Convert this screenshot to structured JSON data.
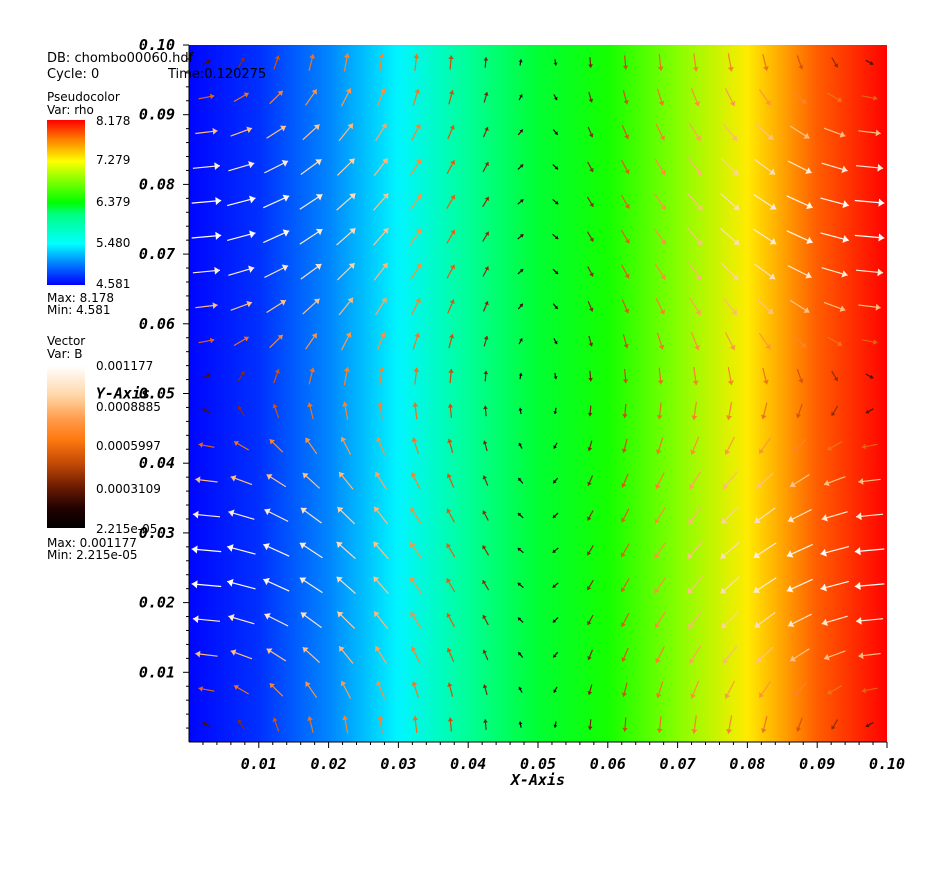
{
  "header": {
    "db_line": "DB: chombo00060.hdf",
    "cycle_label": "Cycle: 0",
    "time_label": "Time:0.120275"
  },
  "legend_scalar": {
    "title": "Pseudocolor",
    "var": "Var: rho",
    "ticks": [
      "8.178",
      "7.279",
      "6.379",
      "5.480",
      "4.581"
    ],
    "max_label": "Max:  8.178",
    "min_label": "Min:  4.581"
  },
  "legend_vector": {
    "title": "Vector",
    "var": "Var: B",
    "ticks": [
      "0.001177",
      "0.0008885",
      "0.0005997",
      "0.0003109",
      "2.215e-05"
    ],
    "max_label": "Max:  0.001177",
    "min_label": "Min:  2.215e-05"
  },
  "chart_data": {
    "type": "heatmap",
    "title": "",
    "xlabel": "X-Axis",
    "ylabel": "Y-Axis",
    "xlim": [
      0,
      0.1
    ],
    "ylim": [
      0,
      0.1
    ],
    "x_ticks": [
      "0.01",
      "0.02",
      "0.03",
      "0.04",
      "0.05",
      "0.06",
      "0.07",
      "0.08",
      "0.09",
      "0.10"
    ],
    "y_ticks": [
      "0.10",
      "0.09",
      "0.08",
      "0.07",
      "0.06",
      "0.05",
      "0.04",
      "0.03",
      "0.02",
      "0.01"
    ],
    "scalar_field": {
      "name": "rho",
      "min": 4.581,
      "max": 8.178,
      "profile_x": [
        0,
        0.01,
        0.02,
        0.03,
        0.04,
        0.05,
        0.06,
        0.07,
        0.08,
        0.09,
        0.1
      ],
      "profile_rho": [
        4.6,
        4.75,
        5.05,
        5.45,
        5.85,
        6.2,
        6.45,
        6.85,
        7.35,
        7.85,
        8.17
      ]
    },
    "vector_field": {
      "name": "B",
      "min": 2.215e-05,
      "max": 0.001177
    },
    "colormap_rho": [
      "#0000ff",
      "#0080ff",
      "#00ffff",
      "#00ff80",
      "#00ff00",
      "#80ff00",
      "#ffff00",
      "#ff8000",
      "#ff0000"
    ],
    "colormap_vec": [
      "#000000",
      "#3a0800",
      "#8a2a04",
      "#e05808",
      "#ff8a30",
      "#ffbe80",
      "#ffe6cc",
      "#ffffff"
    ]
  }
}
